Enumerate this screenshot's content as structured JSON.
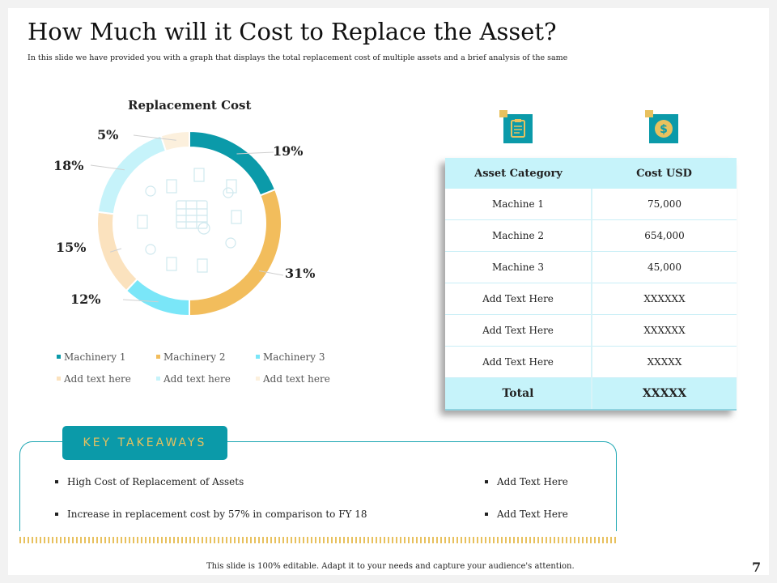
{
  "slide": {
    "title": "How Much will it Cost to Replace the Asset?",
    "subtitle": "In this slide we have provided you with a graph that displays the total replacement cost of multiple assets and a brief analysis of the same",
    "footer": "This slide is 100% editable. Adapt it to your needs and capture your audience's attention.",
    "page_number": "7"
  },
  "chart_data": {
    "type": "pie",
    "variant": "donut",
    "title": "Replacement Cost",
    "series": [
      {
        "name": "Machinery 1",
        "value": 19,
        "label": "19%",
        "color": "#0b9aa9"
      },
      {
        "name": "Machinery 2",
        "value": 31,
        "label": "31%",
        "color": "#f2bd5c"
      },
      {
        "name": "Machinery 3",
        "value": 12,
        "label": "12%",
        "color": "#7ae6f8"
      },
      {
        "name": "Add text here",
        "value": 15,
        "label": "15%",
        "color": "#fbe2be"
      },
      {
        "name": "Add text here",
        "value": 18,
        "label": "18%",
        "color": "#c6f3fa"
      },
      {
        "name": "Add text here",
        "value": 5,
        "label": "5%",
        "color": "#fcf0dd"
      }
    ],
    "legend_position": "bottom"
  },
  "icons": {
    "category_icon": "clipboard-icon",
    "cost_icon": "dollar-coin-icon",
    "center_icon": "spreadsheet-icon"
  },
  "table": {
    "headers": [
      "Asset Category",
      "Cost USD"
    ],
    "rows": [
      [
        "Machine 1",
        "75,000"
      ],
      [
        "Machine 2",
        "654,000"
      ],
      [
        "Machine 3",
        "45,000"
      ],
      [
        "Add Text Here",
        "XXXXXX"
      ],
      [
        "Add Text Here",
        "XXXXXX"
      ],
      [
        "Add Text Here",
        "XXXXX"
      ]
    ],
    "total": [
      "Total",
      "XXXXX"
    ]
  },
  "takeaways": {
    "heading": "KEY TAKEAWAYS",
    "left": [
      "High Cost of Replacement  of Assets",
      "Increase  in replacement  cost by 57% in comparison  to FY 18"
    ],
    "right": [
      "Add  Text Here",
      "Add  Text Here"
    ]
  },
  "colors": {
    "accent": "#0b9aa9",
    "gold": "#e8c15e",
    "table_header": "#c6f3fa"
  }
}
